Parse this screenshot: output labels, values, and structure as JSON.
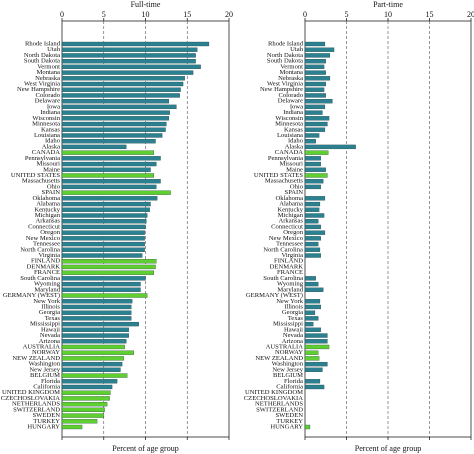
{
  "chart_data": [
    {
      "type": "bar",
      "orientation": "horizontal",
      "title": "Full-time",
      "xlabel": "Percent of age group",
      "xlim": [
        0,
        20
      ],
      "xticks": [
        0,
        5,
        10,
        15,
        20
      ],
      "grid": true,
      "categories": [
        "Rhode Island",
        "Utah",
        "North Dakota",
        "South Dakota",
        "Vermont",
        "Montana",
        "Nebraska",
        "West Virginia",
        "New Hampshire",
        "Colorado",
        "Delaware",
        "Iowa",
        "Indiana",
        "Wisconsin",
        "Minnesota",
        "Kansas",
        "Louisiana",
        "Idaho",
        "Alaska",
        "CANADA",
        "Pennsylvania",
        "Missouri",
        "Maine",
        "UNITED STATES",
        "Massachusetts",
        "Ohio",
        "SPAIN",
        "Oklahoma",
        "Alabama",
        "Kentucky",
        "Michigan",
        "Arkansas",
        "Connecticut",
        "Oregon",
        "New Mexico",
        "Tennessee",
        "North Carolina",
        "Virginia",
        "FINLAND",
        "DENMARK",
        "FRANCE",
        "South Carolina",
        "Wyoming",
        "Maryland",
        "GERMANY (WEST)",
        "New York",
        "Illinois",
        "Georgia",
        "Texas",
        "Mississippi",
        "Hawaii",
        "Nevada",
        "Arizona",
        "AUSTRALIA",
        "NORWAY",
        "NEW ZEALAND",
        "Washington",
        "New Jersey",
        "BELGIUM",
        "Florida",
        "California",
        "UNITED KINGDOM",
        "CZECHOSLOVAKIA",
        "NETHERLANDS",
        "SWITZERLAND",
        "SWEDEN",
        "TURKEY",
        "HUNGARY"
      ],
      "values": [
        17.6,
        16.2,
        16,
        16,
        16.6,
        15.7,
        14.7,
        14.5,
        14.2,
        14.1,
        12.8,
        13.7,
        12.9,
        12.8,
        12.5,
        12.4,
        12,
        11.2,
        7.7,
        11,
        11.8,
        11.3,
        10.6,
        11,
        11.8,
        11.3,
        13,
        11.4,
        10.6,
        10.5,
        10.2,
        10.1,
        10,
        9.9,
        9.9,
        9.9,
        9.9,
        9.6,
        11.3,
        11.2,
        11,
        10,
        9.4,
        9.4,
        10.2,
        8.4,
        8.3,
        8.3,
        8.3,
        9.2,
        8,
        8,
        7.7,
        7.5,
        8.6,
        7.4,
        7.2,
        7,
        7.8,
        6.6,
        6,
        5.8,
        5.7,
        5.4,
        5.1,
        5,
        4.2,
        2.4
      ],
      "colors": [
        "#2b8190",
        "#2b8190",
        "#2b8190",
        "#2b8190",
        "#2b8190",
        "#2b8190",
        "#2b8190",
        "#2b8190",
        "#2b8190",
        "#2b8190",
        "#2b8190",
        "#2b8190",
        "#2b8190",
        "#2b8190",
        "#2b8190",
        "#2b8190",
        "#2b8190",
        "#2b8190",
        "#2b8190",
        "#5fcf2f",
        "#2b8190",
        "#2b8190",
        "#2b8190",
        "#5fcf2f",
        "#2b8190",
        "#2b8190",
        "#5fcf2f",
        "#2b8190",
        "#2b8190",
        "#2b8190",
        "#2b8190",
        "#2b8190",
        "#2b8190",
        "#2b8190",
        "#2b8190",
        "#2b8190",
        "#2b8190",
        "#2b8190",
        "#5fcf2f",
        "#5fcf2f",
        "#5fcf2f",
        "#2b8190",
        "#2b8190",
        "#2b8190",
        "#5fcf2f",
        "#2b8190",
        "#2b8190",
        "#2b8190",
        "#2b8190",
        "#2b8190",
        "#2b8190",
        "#2b8190",
        "#2b8190",
        "#5fcf2f",
        "#5fcf2f",
        "#5fcf2f",
        "#2b8190",
        "#2b8190",
        "#5fcf2f",
        "#2b8190",
        "#2b8190",
        "#5fcf2f",
        "#5fcf2f",
        "#5fcf2f",
        "#5fcf2f",
        "#5fcf2f",
        "#5fcf2f",
        "#5fcf2f"
      ]
    },
    {
      "type": "bar",
      "orientation": "horizontal",
      "title": "Part-time",
      "xlabel": "Percent of age group",
      "xlim": [
        0,
        20
      ],
      "xticks": [
        0,
        5,
        10,
        15,
        20
      ],
      "grid": true,
      "categories": [
        "Rhode Island",
        "Utah",
        "North Dakota",
        "South Dakota",
        "Vermont",
        "Montana",
        "Nebraska",
        "West Virginia",
        "New Hampshire",
        "Colorado",
        "Delaware",
        "Iowa",
        "Indiana",
        "Wisconsin",
        "Minnesota",
        "Kansas",
        "Louisiana",
        "Idaho",
        "Alaska",
        "CANADA",
        "Pennsylvania",
        "Missouri",
        "Maine",
        "UNITED STATES",
        "Massachusetts",
        "Ohio",
        "SPAIN",
        "Oklahoma",
        "Alabama",
        "Kentucky",
        "Michigan",
        "Arkansas",
        "Connecticut",
        "Oregon",
        "New Mexico",
        "Tennessee",
        "North Carolina",
        "Virginia",
        "FINLAND",
        "DENMARK",
        "FRANCE",
        "South Carolina",
        "Wyoming",
        "Maryland",
        "GERMANY (WEST)",
        "New York",
        "Illinois",
        "Georgia",
        "Texas",
        "Mississippi",
        "Hawaii",
        "Nevada",
        "Arizona",
        "AUSTRALIA",
        "NORWAY",
        "NEW ZEALAND",
        "Washington",
        "New Jersey",
        "BELGIUM",
        "Florida",
        "California",
        "UNITED KINGDOM",
        "CZECHOSLOVAKIA",
        "NETHERLANDS",
        "SWITZERLAND",
        "SWEDEN",
        "TURKEY",
        "HUNGARY"
      ],
      "values": [
        2.4,
        3.5,
        3,
        2.5,
        2.3,
        2.5,
        3,
        2.5,
        2.3,
        2.5,
        3.3,
        2.4,
        2.1,
        2.9,
        2.7,
        2.4,
        1.7,
        1.3,
        6.1,
        2.8,
        1.9,
        1.9,
        2.5,
        2.7,
        2.2,
        1.9,
        0,
        2.4,
        1.8,
        1.7,
        2.3,
        1.6,
        1.9,
        2.4,
        1.9,
        1.6,
        1.8,
        1.9,
        0,
        0,
        0,
        1.3,
        1.6,
        2.2,
        0,
        1.8,
        1.9,
        1.2,
        1.6,
        1,
        1.9,
        2.7,
        2.7,
        2.9,
        1.6,
        1.7,
        2.7,
        2.1,
        0,
        1.8,
        2.3,
        0,
        0,
        0,
        0,
        0,
        0,
        0.6
      ],
      "colors": [
        "#2b8190",
        "#2b8190",
        "#2b8190",
        "#2b8190",
        "#2b8190",
        "#2b8190",
        "#2b8190",
        "#2b8190",
        "#2b8190",
        "#2b8190",
        "#2b8190",
        "#2b8190",
        "#2b8190",
        "#2b8190",
        "#2b8190",
        "#2b8190",
        "#2b8190",
        "#2b8190",
        "#2b8190",
        "#5fcf2f",
        "#2b8190",
        "#2b8190",
        "#2b8190",
        "#5fcf2f",
        "#2b8190",
        "#2b8190",
        "#5fcf2f",
        "#2b8190",
        "#2b8190",
        "#2b8190",
        "#2b8190",
        "#2b8190",
        "#2b8190",
        "#2b8190",
        "#2b8190",
        "#2b8190",
        "#2b8190",
        "#2b8190",
        "#5fcf2f",
        "#5fcf2f",
        "#5fcf2f",
        "#2b8190",
        "#2b8190",
        "#2b8190",
        "#5fcf2f",
        "#2b8190",
        "#2b8190",
        "#2b8190",
        "#2b8190",
        "#2b8190",
        "#2b8190",
        "#2b8190",
        "#2b8190",
        "#5fcf2f",
        "#5fcf2f",
        "#5fcf2f",
        "#2b8190",
        "#2b8190",
        "#5fcf2f",
        "#2b8190",
        "#2b8190",
        "#5fcf2f",
        "#5fcf2f",
        "#5fcf2f",
        "#5fcf2f",
        "#5fcf2f",
        "#5fcf2f",
        "#5fcf2f"
      ]
    }
  ]
}
